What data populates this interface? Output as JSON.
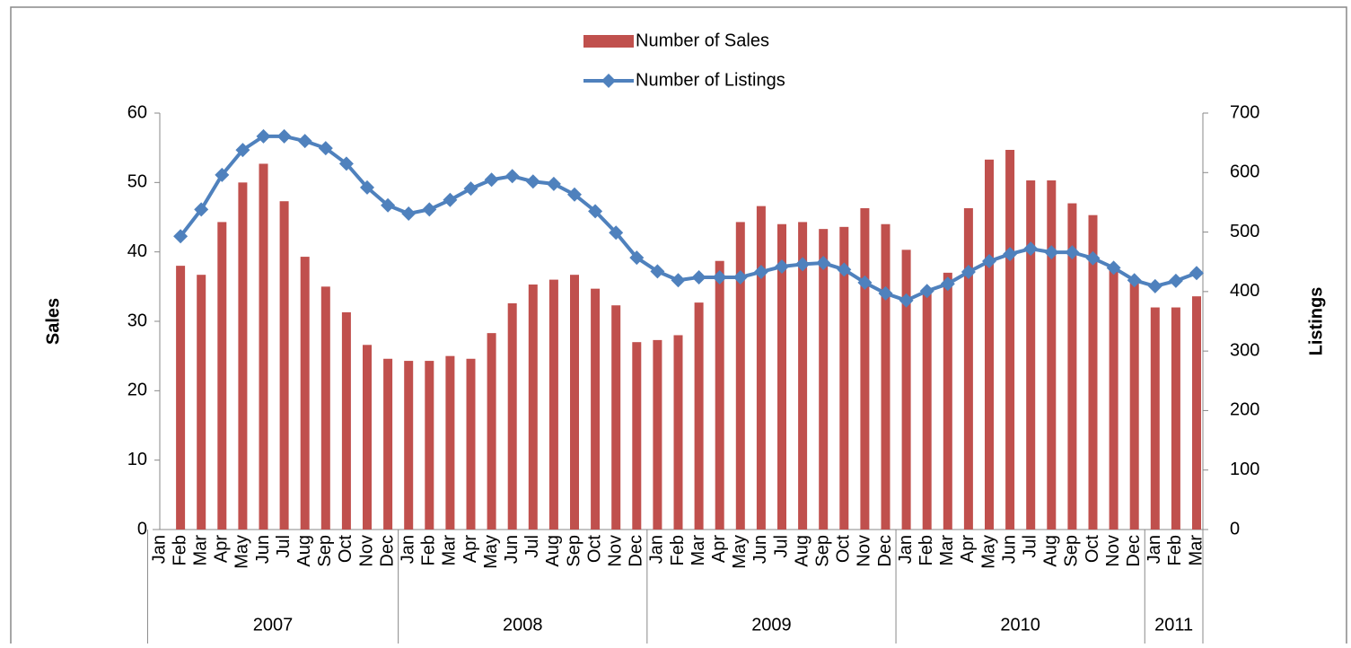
{
  "chart_data": {
    "type": "bar",
    "y_label": "Sales",
    "y2_label": "Listings",
    "categories": [
      "Jan",
      "Feb",
      "Mar",
      "Apr",
      "May",
      "Jun",
      "Jul",
      "Aug",
      "Sep",
      "Oct",
      "Nov",
      "Dec",
      "Jan",
      "Feb",
      "Mar",
      "Apr",
      "May",
      "Jun",
      "Jul",
      "Aug",
      "Sep",
      "Oct",
      "Nov",
      "Dec",
      "Jan",
      "Feb",
      "Mar",
      "Apr",
      "May",
      "Jun",
      "Jul",
      "Aug",
      "Sep",
      "Oct",
      "Nov",
      "Dec",
      "Jan",
      "Feb",
      "Mar",
      "Apr",
      "May",
      "Jun",
      "Jul",
      "Aug",
      "Sep",
      "Oct",
      "Nov",
      "Dec",
      "Jan",
      "Feb",
      "Mar"
    ],
    "groups": [
      {
        "name": "2007",
        "size": 12
      },
      {
        "name": "2008",
        "size": 12
      },
      {
        "name": "2009",
        "size": 12
      },
      {
        "name": "2010",
        "size": 12
      },
      {
        "name": "2011",
        "size": 3
      }
    ],
    "series": [
      {
        "name": "Number of Sales",
        "type": "bar",
        "color": "#c0504d",
        "values": [
          null,
          38,
          36.7,
          44.3,
          50,
          52.7,
          47.3,
          39.3,
          35,
          31.3,
          26.6,
          24.6,
          24.3,
          24.3,
          25,
          24.6,
          28.3,
          32.6,
          35.3,
          36,
          36.7,
          34.7,
          32.3,
          27,
          27.3,
          28,
          32.7,
          38.7,
          44.3,
          46.6,
          44,
          44.3,
          43.3,
          43.6,
          46.3,
          44,
          40.3,
          34,
          37,
          46.3,
          53.3,
          54.7,
          50.3,
          50.3,
          47,
          45.3,
          38,
          36,
          32,
          32,
          33.6
        ]
      },
      {
        "name": "Number of Listings",
        "type": "line",
        "axis": "y2",
        "color": "#4f81bd",
        "values": [
          null,
          493,
          538,
          596,
          638,
          661,
          661,
          653,
          641,
          615,
          575,
          545,
          531,
          538,
          554,
          573,
          588,
          594,
          585,
          581,
          563,
          535,
          499,
          457,
          434,
          419,
          424,
          424,
          424,
          433,
          442,
          446,
          448,
          437,
          415,
          397,
          385,
          401,
          413,
          433,
          451,
          463,
          472,
          466,
          466,
          456,
          440,
          419,
          409,
          418,
          431
        ]
      }
    ],
    "ylim": [
      0,
      60
    ],
    "yticks": [
      0,
      10,
      20,
      30,
      40,
      50,
      60
    ],
    "y2lim": [
      0,
      700
    ],
    "y2ticks": [
      0,
      100,
      200,
      300,
      400,
      500,
      600,
      700
    ],
    "legend": "top"
  }
}
